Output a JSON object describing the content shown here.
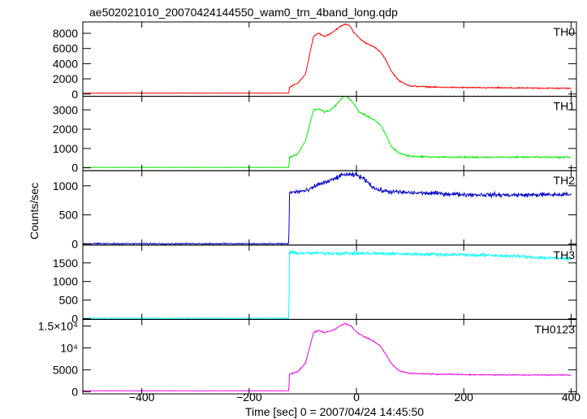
{
  "figure": {
    "title": "ae502021010_20070424144550_wam0_trn_4band_long.qdp",
    "ylabel": "Counts/sec",
    "xlabel": "Time [sec] 0 = 2007/04/24 14:45:50"
  },
  "chart_data": {
    "type": "line",
    "title": "ae502021010_20070424144550_wam0_trn_4band_long.qdp",
    "ylabel": "Counts/sec",
    "xlabel": "Time [sec] 0 = 2007/04/24 14:45:50",
    "xlim": [
      -510,
      410
    ],
    "x_ticks": [
      -400,
      -200,
      0,
      200,
      400
    ],
    "x_tick_labels": [
      "−400",
      "−200",
      "0",
      "200",
      "400"
    ],
    "grid": false,
    "panels": [
      {
        "name": "TH0",
        "color": "#ff0000",
        "ylim": [
          -300,
          9500
        ],
        "y_ticks": [
          0,
          2000,
          4000,
          6000,
          8000
        ],
        "y_tick_labels": [
          "0",
          "2000",
          "4000",
          "6000",
          "8000"
        ],
        "noise": 70,
        "x": [
          -510,
          -126,
          -125,
          -110,
          -95,
          -80,
          -70,
          -60,
          -50,
          -40,
          -30,
          -22,
          -15,
          -10,
          -5,
          5,
          15,
          25,
          35,
          45,
          55,
          65,
          80,
          100,
          150,
          200,
          300,
          400
        ],
        "y": [
          120,
          120,
          900,
          1400,
          2600,
          7600,
          8000,
          7600,
          7900,
          8400,
          8900,
          9200,
          9100,
          8800,
          8100,
          7400,
          6800,
          6500,
          6100,
          5500,
          4500,
          3000,
          1700,
          1050,
          900,
          850,
          800,
          750
        ]
      },
      {
        "name": "TH1",
        "color": "#00ee00",
        "ylim": [
          -150,
          3700
        ],
        "y_ticks": [
          0,
          1000,
          2000,
          3000
        ],
        "y_tick_labels": [
          "0",
          "1000",
          "2000",
          "3000"
        ],
        "noise": 35,
        "x": [
          -510,
          -126,
          -125,
          -110,
          -95,
          -80,
          -70,
          -60,
          -50,
          -40,
          -30,
          -22,
          -15,
          -10,
          -5,
          5,
          15,
          25,
          35,
          45,
          55,
          65,
          80,
          100,
          150,
          200,
          300,
          400
        ],
        "y": [
          20,
          20,
          550,
          700,
          1400,
          3000,
          3050,
          2900,
          2950,
          3200,
          3500,
          3800,
          3600,
          3500,
          3300,
          2900,
          2750,
          2600,
          2450,
          2200,
          1700,
          1100,
          750,
          600,
          550,
          550,
          550,
          550
        ]
      },
      {
        "name": "TH2",
        "color": "#0000cc",
        "ylim": [
          -20,
          1260
        ],
        "y_ticks": [
          0,
          500,
          1000
        ],
        "y_tick_labels": [
          "0",
          "500",
          "1000"
        ],
        "noise": 32,
        "x": [
          -510,
          -126,
          -125,
          -110,
          -90,
          -70,
          -50,
          -30,
          -20,
          -10,
          0,
          10,
          20,
          30,
          40,
          60,
          100,
          150,
          200,
          300,
          400
        ],
        "y": [
          5,
          5,
          880,
          900,
          920,
          1030,
          1080,
          1170,
          1200,
          1180,
          1190,
          1140,
          1080,
          980,
          930,
          900,
          880,
          870,
          850,
          840,
          850
        ]
      },
      {
        "name": "TH3",
        "color": "#00ffff",
        "ylim": [
          -20,
          1980
        ],
        "y_ticks": [
          0,
          500,
          1000,
          1500
        ],
        "y_tick_labels": [
          "0",
          "500",
          "1000",
          "1500"
        ],
        "noise": 38,
        "x": [
          -510,
          -126,
          -125,
          -100,
          0,
          100,
          200,
          300,
          380,
          400
        ],
        "y": [
          10,
          10,
          1780,
          1760,
          1760,
          1740,
          1720,
          1680,
          1620,
          1620
        ]
      },
      {
        "name": "TH0123",
        "color": "#ee00ee",
        "ylim": [
          -500,
          16500
        ],
        "y_ticks": [
          0,
          5000,
          10000,
          15000
        ],
        "y_tick_labels": [
          "0",
          "5000",
          "10⁴",
          "1.5×10⁴"
        ],
        "noise": 110,
        "x": [
          -510,
          -126,
          -125,
          -110,
          -95,
          -80,
          -70,
          -60,
          -50,
          -40,
          -30,
          -22,
          -15,
          -10,
          -5,
          5,
          15,
          25,
          35,
          45,
          55,
          65,
          80,
          100,
          150,
          200,
          300,
          400
        ],
        "y": [
          200,
          200,
          4000,
          4500,
          6500,
          13500,
          14000,
          13500,
          13800,
          14300,
          15000,
          15600,
          15300,
          15000,
          14300,
          13200,
          12500,
          12000,
          11300,
          10300,
          8500,
          6400,
          4700,
          4200,
          4000,
          3900,
          3800,
          3800
        ]
      }
    ]
  }
}
